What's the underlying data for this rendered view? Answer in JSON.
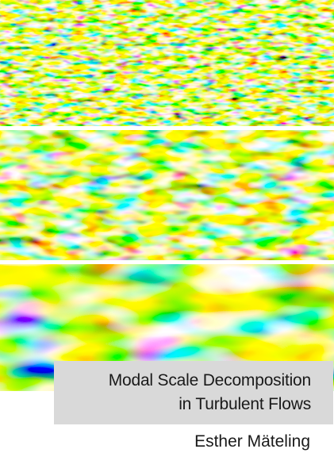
{
  "cover": {
    "title_line_1": "Modal Scale Decomposition",
    "title_line_2": "in Turbulent Flows",
    "author": "Esther Mäteling"
  },
  "colormap": [
    "#00007f",
    "#0050ff",
    "#00d8ff",
    "#7fff7f",
    "#ffe600",
    "#ff6a00",
    "#d00000",
    "#800000"
  ],
  "panels": [
    {
      "name": "fine-scale-field"
    },
    {
      "name": "medium-scale-field"
    },
    {
      "name": "large-scale-field"
    }
  ]
}
